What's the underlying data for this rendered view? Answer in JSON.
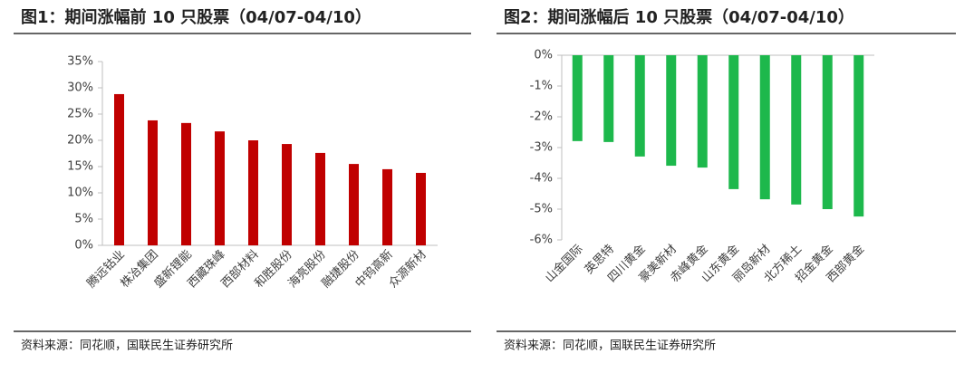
{
  "chart_data": [
    {
      "type": "bar",
      "title": "图1：期间涨幅前 10 只股票（04/07-04/10）",
      "categories": [
        "腾远钴业",
        "株冶集团",
        "盛新锂能",
        "西藏珠峰",
        "西部材料",
        "和胜股份",
        "海亮股份",
        "融捷股份",
        "中钨高新",
        "众源新材"
      ],
      "values": [
        28.8,
        23.8,
        23.3,
        21.7,
        20.0,
        19.3,
        17.6,
        15.5,
        14.5,
        13.8
      ],
      "color": "#c00000",
      "ylim": [
        0,
        35
      ],
      "yticks": [
        {
          "value": 0,
          "label": "0%"
        },
        {
          "value": 5,
          "label": "5%"
        },
        {
          "value": 10,
          "label": "10%"
        },
        {
          "value": 15,
          "label": "15%"
        },
        {
          "value": 20,
          "label": "20%"
        },
        {
          "value": 25,
          "label": "25%"
        },
        {
          "value": 30,
          "label": "30%"
        },
        {
          "value": 35,
          "label": "35%"
        }
      ],
      "source": "资料来源：同花顺，国联民生证券研究所"
    },
    {
      "type": "bar",
      "title": "图2：期间涨幅后 10 只股票（04/07-04/10）",
      "categories": [
        "山金国际",
        "英思特",
        "四川黄金",
        "豪美新材",
        "赤峰黄金",
        "山东黄金",
        "丽岛新材",
        "北方稀土",
        "招金黄金",
        "西部黄金"
      ],
      "values": [
        -2.79,
        -2.82,
        -3.29,
        -3.59,
        -3.65,
        -4.35,
        -4.68,
        -4.85,
        -5.0,
        -5.24
      ],
      "color": "#1db84c",
      "ylim": [
        -6,
        0
      ],
      "yticks": [
        {
          "value": 0,
          "label": "0%"
        },
        {
          "value": -1,
          "label": "-1%"
        },
        {
          "value": -2,
          "label": "-2%"
        },
        {
          "value": -3,
          "label": "-3%"
        },
        {
          "value": -4,
          "label": "-4%"
        },
        {
          "value": -5,
          "label": "-5%"
        },
        {
          "value": -6,
          "label": "-6%"
        }
      ],
      "source": "资料来源：同花顺，国联民生证券研究所"
    }
  ]
}
